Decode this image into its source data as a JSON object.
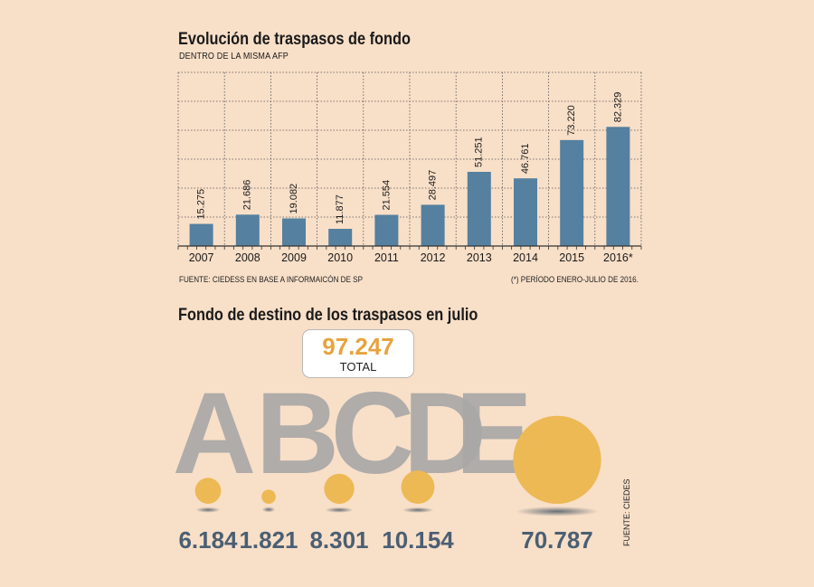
{
  "chart_data": [
    {
      "type": "bar",
      "title": "Evolución de traspasos de fondo",
      "subtitle": "DENTRO DE LA MISMA AFP",
      "categories": [
        "2007",
        "2008",
        "2009",
        "2010",
        "2011",
        "2012",
        "2013",
        "2014",
        "2015",
        "2016*"
      ],
      "values": [
        15275,
        21686,
        19082,
        11877,
        21554,
        28497,
        51251,
        46761,
        73220,
        82329
      ],
      "value_labels": [
        "15.275",
        "21.686",
        "19.082",
        "11.877",
        "21.554",
        "28.497",
        "51.251",
        "46.761",
        "73.220",
        "82.329"
      ],
      "ylim": [
        0,
        120000
      ],
      "grid": true,
      "colors": {
        "bar": "#55809f"
      },
      "source": "FUENTE: CIEDESS EN BASE A INFORMAICÓN DE SP",
      "note": "(*) PERÍODO ENERO-JULIO DE 2016."
    },
    {
      "type": "bubble",
      "title": "Fondo de destino de los traspasos en julio",
      "total": {
        "value": "97.247",
        "label": "TOTAL"
      },
      "categories": [
        "A",
        "B",
        "C",
        "D",
        "E"
      ],
      "values": [
        6184,
        1821,
        8301,
        10154,
        70787
      ],
      "value_labels": [
        "6.184",
        "1.821",
        "8.301",
        "10.154",
        "70.787"
      ],
      "colors": {
        "bubble": "#ecb955",
        "letters": "#a8a7a6",
        "numbers": "#4a5f73",
        "total": "#e8a33d"
      },
      "source": "FUENTE: CIEDES"
    }
  ]
}
